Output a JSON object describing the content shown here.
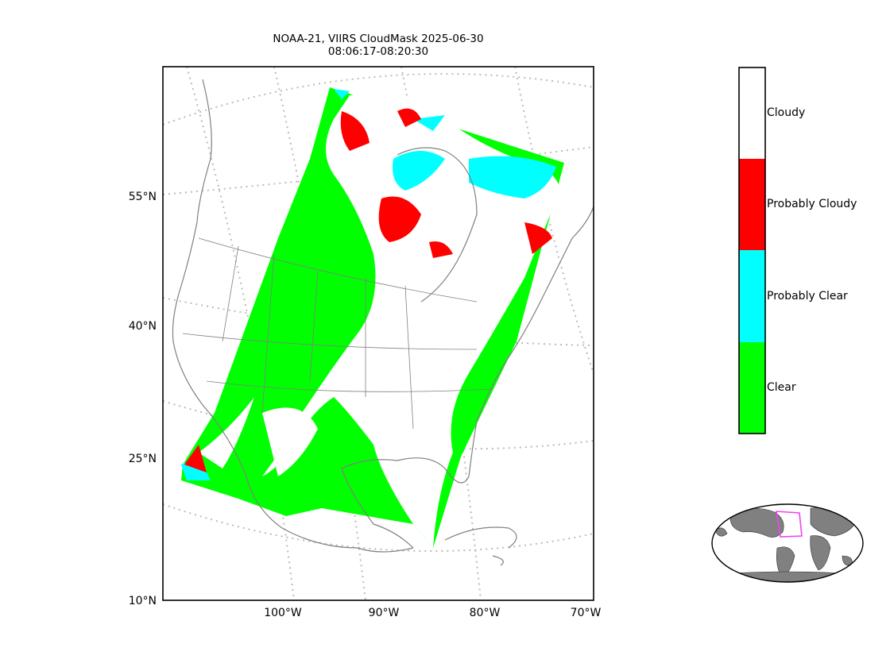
{
  "title": {
    "line1": "NOAA-21, VIIRS CloudMask 2025-06-30",
    "line2": "08:06:17-08:20:30"
  },
  "axes": {
    "y_ticks": [
      "55°N",
      "40°N",
      "25°N",
      "10°N"
    ],
    "x_ticks": [
      "100°W",
      "90°W",
      "80°W",
      "70°W"
    ]
  },
  "colorbar": {
    "categories": [
      {
        "label": "Cloudy",
        "color": "#ffffff"
      },
      {
        "label": "Probably Cloudy",
        "color": "#ff0000"
      },
      {
        "label": "Probably Clear",
        "color": "#00ffff"
      },
      {
        "label": "Clear",
        "color": "#00ff00"
      }
    ]
  },
  "colors": {
    "coastline": "#808080",
    "graticule": "#bbbbbb",
    "inset_land": "#808080",
    "inset_box": "#ee44ee"
  }
}
